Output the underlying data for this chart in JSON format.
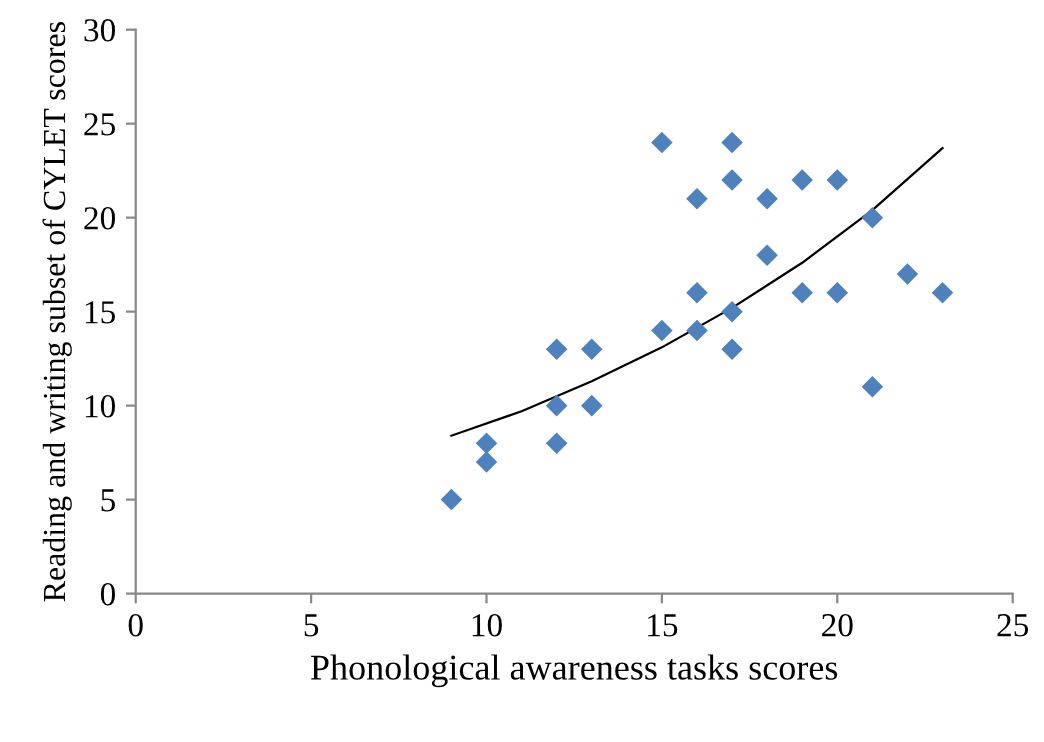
{
  "chart_data": {
    "type": "scatter",
    "xlabel": "Phonological awareness tasks scores",
    "ylabel": "Reading and writing subset of CYLET scores",
    "xlim": [
      0,
      25
    ],
    "xticks": [
      0,
      5,
      10,
      15,
      20,
      25
    ],
    "ylim": [
      0,
      30
    ],
    "yticks": [
      0,
      5,
      10,
      15,
      20,
      25,
      30
    ],
    "grid": false,
    "legend": false,
    "series": [
      {
        "color": "#4f81bd",
        "marker": "diamond",
        "x": [
          9,
          10,
          10,
          12,
          12,
          12,
          13,
          13,
          15,
          15,
          16,
          16,
          16,
          17,
          17,
          17,
          17,
          18,
          18,
          19,
          19,
          20,
          20,
          21,
          21,
          22,
          23
        ],
        "values": [
          5,
          8,
          7,
          13,
          10,
          8,
          13,
          10,
          24,
          14,
          21,
          16,
          14,
          24,
          22,
          15,
          13,
          21,
          18,
          22,
          16,
          22,
          16,
          20,
          11,
          17,
          16
        ]
      },
      {
        "type": "line",
        "color": "#000000",
        "marker": "none",
        "line_style": "solid",
        "x": [
          9,
          11,
          13,
          15,
          17,
          19,
          21,
          23
        ],
        "values": [
          8.4,
          9.7,
          11.3,
          13.1,
          15.2,
          17.6,
          20.4,
          23.7
        ]
      }
    ]
  }
}
